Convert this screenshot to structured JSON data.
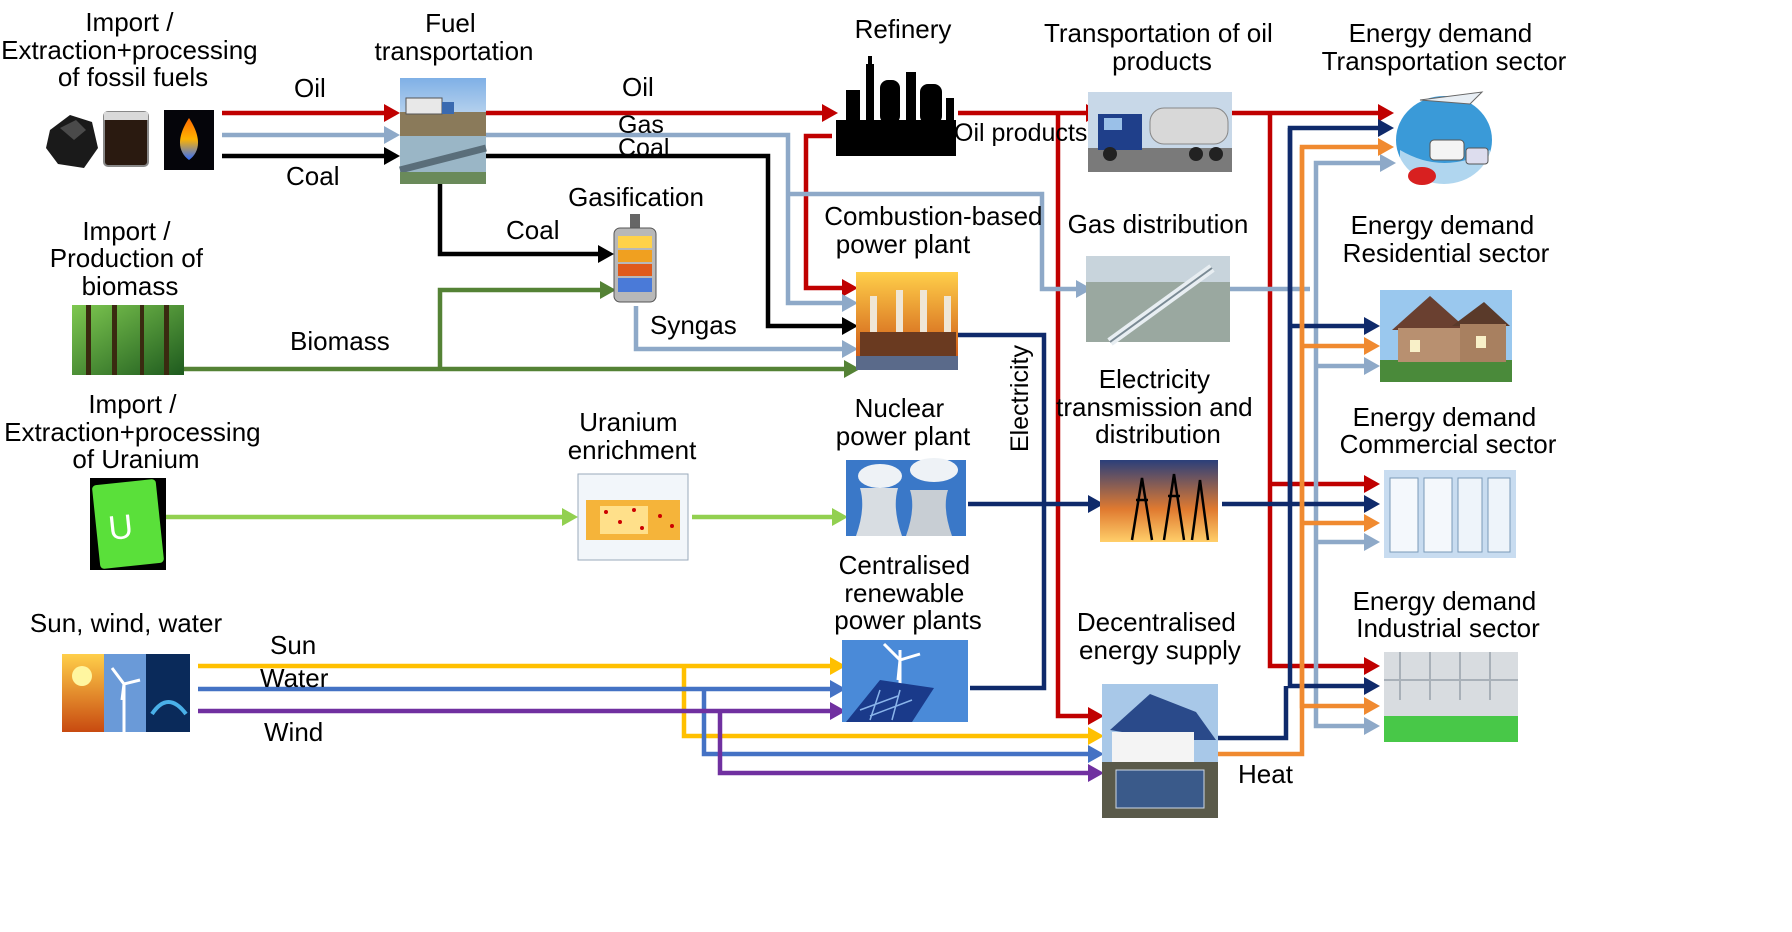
{
  "colors": {
    "oil": "#c00000",
    "gas": "#8ea9c8",
    "coal": "#000000",
    "biomass": "#548235",
    "uranium": "#92d050",
    "electricity": "#0f2a6b",
    "heat": "#f08a30",
    "sun": "#ffc000",
    "water": "#4472c4",
    "wind": "#7030a0"
  },
  "nodes": {
    "fossil_source": {
      "line1": "Import /",
      "line2": "Extraction+processing",
      "line3": "of fossil fuels",
      "icon": "coal-oil-gas-icons"
    },
    "fuel_transport": {
      "line1": "Fuel",
      "line2": "transportation",
      "icon": "truck-pipeline-photo"
    },
    "refinery": {
      "line1": "Refinery",
      "icon": "refinery-icon"
    },
    "oil_transport": {
      "line1": "Transportation of oil",
      "line2": "products",
      "icon": "tanker-truck-photo"
    },
    "demand_transport": {
      "line1": "Energy demand",
      "line2": "Transportation sector",
      "icon": "vehicles-icon"
    },
    "biomass_source": {
      "line1": "Import /",
      "line2": "Production of",
      "line3": "biomass",
      "icon": "forest-photo"
    },
    "gasification": {
      "line1": "Gasification",
      "icon": "gasifier-icon"
    },
    "combustion_plant": {
      "line1": "Combustion-based",
      "line2": "power plant",
      "icon": "power-station-photo"
    },
    "gas_distribution": {
      "line1": "Gas distribution",
      "icon": "gas-pipeline-photo"
    },
    "demand_residential": {
      "line1": "Energy demand",
      "line2": "Residential sector",
      "icon": "house-photo"
    },
    "uranium_source": {
      "line1": "Import /",
      "line2": "Extraction+processing",
      "line3": "of Uranium",
      "icon": "uranium-icon"
    },
    "uranium_enrichment": {
      "line1": "Uranium",
      "line2": "enrichment",
      "icon": "enrichment-diagram"
    },
    "nuclear_plant": {
      "line1": "Nuclear",
      "line2": "power plant",
      "icon": "cooling-towers-photo"
    },
    "electricity_grid": {
      "line1": "Electricity",
      "line2": "transmission and",
      "line3": "distribution",
      "icon": "power-lines-photo"
    },
    "demand_commercial": {
      "line1": "Energy demand",
      "line2": "Commercial sector",
      "icon": "shop-interior-photo"
    },
    "renewable_source": {
      "line1": "Sun, wind, water",
      "icon": "sun-wind-water-photo"
    },
    "renewable_plants": {
      "line1": "Centralised",
      "line2": "renewable",
      "line3": "power plants",
      "icon": "solar-wind-photo"
    },
    "decentral_supply": {
      "line1": "Decentralised",
      "line2": "energy supply",
      "icon": "solar-house-photo"
    },
    "demand_industrial": {
      "line1": "Energy demand",
      "line2": "Industrial sector",
      "icon": "factory-photo"
    }
  },
  "flow_labels": {
    "oil_in": "Oil",
    "coal_in": "Coal",
    "oil_out": "Oil",
    "gas_out": "Gas",
    "coal_out": "Coal",
    "coal_gasification": "Coal",
    "biomass": "Biomass",
    "syngas": "Syngas",
    "oil_products": "Oil products",
    "electricity": "Electricity",
    "sun": "Sun",
    "water": "Water",
    "wind": "Wind",
    "heat": "Heat"
  }
}
